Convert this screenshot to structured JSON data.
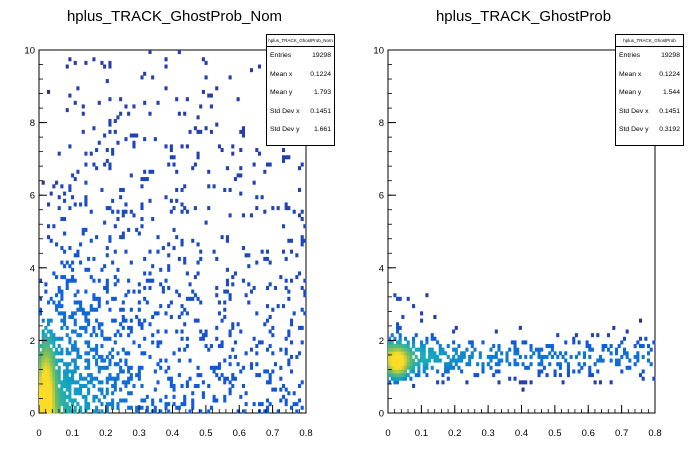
{
  "chart_data": [
    {
      "type": "heatmap",
      "title": "hplus_TRACK_GhostProb_Nom",
      "xlabel": "",
      "ylabel": "",
      "xlim": [
        0,
        0.8
      ],
      "ylim": [
        0,
        10
      ],
      "x_ticks": [
        "0",
        "0.1",
        "0.2",
        "0.3",
        "0.4",
        "0.5",
        "0.6",
        "0.7",
        "0.8"
      ],
      "y_ticks": [
        "0",
        "2",
        "4",
        "6",
        "8",
        "10"
      ],
      "stats": {
        "name": "hplus_TRACK_GhostProb_Nom",
        "rows": [
          {
            "label": "Entries",
            "value": "19298"
          },
          {
            "label": "Mean x",
            "value": "0.1224"
          },
          {
            "label": "Mean y",
            "value": "1.793"
          },
          {
            "label": "Std Dev x",
            "value": "0.1451"
          },
          {
            "label": "Std Dev y",
            "value": "1.661"
          }
        ]
      },
      "distribution": {
        "x_decay": 0.12,
        "y_mean": 1.793,
        "y_spread": 1.661,
        "core_x": 0.02,
        "core_y": 0.5
      }
    },
    {
      "type": "heatmap",
      "title": "hplus_TRACK_GhostProb",
      "xlabel": "",
      "ylabel": "",
      "xlim": [
        0,
        0.8
      ],
      "ylim": [
        0,
        10
      ],
      "x_ticks": [
        "0",
        "0.1",
        "0.2",
        "0.3",
        "0.4",
        "0.5",
        "0.6",
        "0.7",
        "0.8"
      ],
      "y_ticks": [
        "0",
        "2",
        "4",
        "6",
        "8",
        "10"
      ],
      "stats": {
        "name": "hplus_TRACK_GhostProb",
        "rows": [
          {
            "label": "Entries",
            "value": "19298"
          },
          {
            "label": "Mean x",
            "value": "0.1224"
          },
          {
            "label": "Mean y",
            "value": "1.544"
          },
          {
            "label": "Std Dev x",
            "value": "0.1451"
          },
          {
            "label": "Std Dev y",
            "value": "0.3192"
          }
        ]
      },
      "distribution": {
        "x_decay": 0.12,
        "y_mean": 1.544,
        "y_spread": 0.3192,
        "core_x": 0.03,
        "core_y": 1.4
      }
    }
  ]
}
